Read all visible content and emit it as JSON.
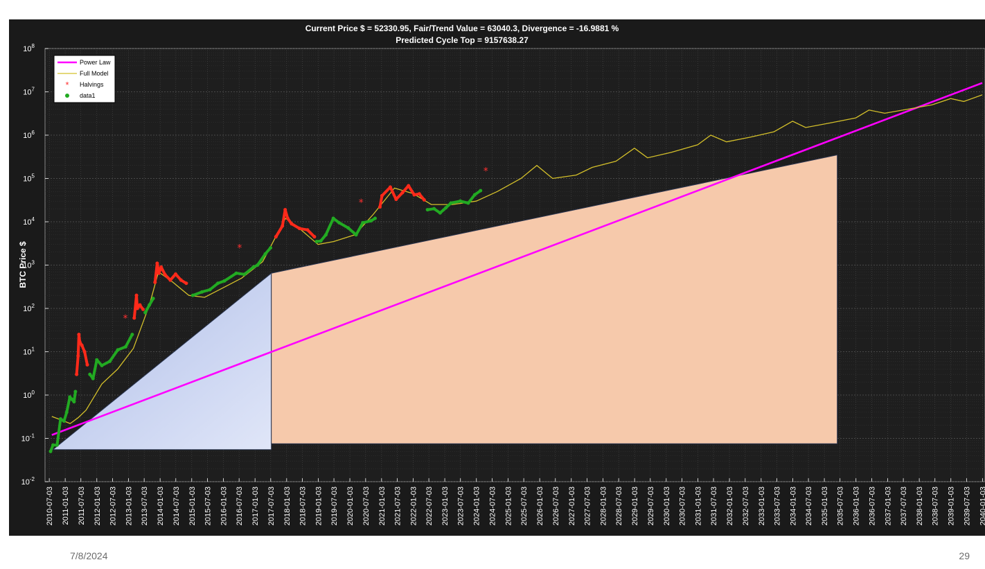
{
  "slide": {
    "date": "7/8/2024",
    "page_number": "29"
  },
  "colors": {
    "background": "#1a1a1a",
    "power_law": "#ff00ff",
    "full_model": "#d4c02a",
    "halvings": "#ff3030",
    "data_green": "#22aa22",
    "data_red": "#ff2a1a",
    "blue_triangle": "#c4d0f0",
    "orange_trapezoid": "#f6c9ab"
  },
  "chart_data": {
    "type": "scatter",
    "title": "Current Price $ = 52330.95, Fair/Trend Value = 63040.3, Divergence = -16.9881 %",
    "subtitle": "Predicted Cycle Top = 9157638.27",
    "ylabel": "BTC Price $",
    "yscale": "log",
    "ylim_exp": [
      -2,
      8
    ],
    "y_tick_labels": [
      {
        "base": "10",
        "exp": "-2"
      },
      {
        "base": "10",
        "exp": "-1"
      },
      {
        "base": "10",
        "exp": "0"
      },
      {
        "base": "10",
        "exp": "1"
      },
      {
        "base": "10",
        "exp": "2"
      },
      {
        "base": "10",
        "exp": "3"
      },
      {
        "base": "10",
        "exp": "4"
      },
      {
        "base": "10",
        "exp": "5"
      },
      {
        "base": "10",
        "exp": "6"
      },
      {
        "base": "10",
        "exp": "7"
      },
      {
        "base": "10",
        "exp": "8"
      }
    ],
    "xlim": [
      "2010-05-15",
      "2040-02-01"
    ],
    "x_ticks": [
      "2010-07-03",
      "2011-01-03",
      "2011-07-03",
      "2012-01-03",
      "2012-07-03",
      "2013-01-03",
      "2013-07-03",
      "2014-01-03",
      "2014-07-03",
      "2015-01-03",
      "2015-07-03",
      "2016-01-03",
      "2016-07-03",
      "2017-01-03",
      "2017-07-03",
      "2018-01-03",
      "2018-07-03",
      "2019-01-03",
      "2019-07-03",
      "2020-01-03",
      "2020-07-03",
      "2021-01-03",
      "2021-07-03",
      "2022-01-03",
      "2022-07-03",
      "2023-01-03",
      "2023-07-03",
      "2024-01-03",
      "2024-07-03",
      "2025-01-03",
      "2025-07-03",
      "2026-01-03",
      "2026-07-03",
      "2027-01-03",
      "2027-07-03",
      "2028-01-03",
      "2028-07-03",
      "2029-01-03",
      "2029-07-03",
      "2030-01-03",
      "2030-07-03",
      "2031-01-03",
      "2031-07-03",
      "2032-01-03",
      "2032-07-03",
      "2033-01-03",
      "2033-07-03",
      "2034-01-03",
      "2034-07-03",
      "2035-01-03",
      "2035-07-03",
      "2036-01-03",
      "2036-07-03",
      "2037-01-03",
      "2037-07-03",
      "2038-01-03",
      "2038-07-03",
      "2039-01-03",
      "2039-07-03",
      "2040-01-03"
    ],
    "grid": true,
    "legend_position": "top-left",
    "legend": [
      {
        "label": "Power Law",
        "marker": "line",
        "color": "#ff00ff"
      },
      {
        "label": "Full Model",
        "marker": "thin-line",
        "color": "#d4c02a"
      },
      {
        "label": "Halvings",
        "marker": "star",
        "color": "#ff3030"
      },
      {
        "label": "data1",
        "marker": "dot",
        "color": "#22aa22"
      }
    ],
    "series": [
      {
        "kind": "power_law",
        "points": [
          [
            "2010-08-01",
            0.12
          ],
          [
            "2039-12-31",
            16000000.0
          ]
        ]
      },
      {
        "kind": "full_model",
        "points": [
          [
            "2010-08-01",
            0.32
          ],
          [
            "2010-12-01",
            0.26
          ],
          [
            "2011-03-01",
            0.22
          ],
          [
            "2011-06-01",
            0.3
          ],
          [
            "2011-09-01",
            0.45
          ],
          [
            "2012-03-01",
            1.8
          ],
          [
            "2012-09-01",
            4.0
          ],
          [
            "2013-03-01",
            12
          ],
          [
            "2013-09-01",
            120
          ],
          [
            "2013-12-15",
            700
          ],
          [
            "2014-06-01",
            400
          ],
          [
            "2014-12-01",
            200
          ],
          [
            "2015-06-01",
            180
          ],
          [
            "2016-01-01",
            300
          ],
          [
            "2016-08-01",
            500
          ],
          [
            "2017-04-01",
            1200
          ],
          [
            "2017-12-20",
            12000
          ],
          [
            "2018-06-01",
            7000
          ],
          [
            "2019-01-01",
            3000
          ],
          [
            "2019-07-01",
            3500
          ],
          [
            "2020-03-01",
            5000
          ],
          [
            "2020-10-01",
            15000
          ],
          [
            "2021-06-01",
            60000
          ],
          [
            "2022-01-01",
            45000
          ],
          [
            "2022-08-01",
            25000
          ],
          [
            "2023-04-01",
            25000
          ],
          [
            "2024-01-01",
            30000
          ],
          [
            "2024-09-01",
            50000
          ],
          [
            "2025-06-01",
            100000
          ],
          [
            "2025-12-01",
            200000
          ],
          [
            "2026-06-01",
            100000
          ],
          [
            "2027-03-01",
            120000
          ],
          [
            "2027-09-01",
            180000
          ],
          [
            "2028-06-01",
            250000
          ],
          [
            "2029-01-01",
            500000
          ],
          [
            "2029-06-01",
            300000
          ],
          [
            "2030-03-01",
            400000
          ],
          [
            "2031-01-01",
            600000
          ],
          [
            "2031-06-01",
            1000000
          ],
          [
            "2031-12-01",
            700000
          ],
          [
            "2032-09-01",
            900000
          ],
          [
            "2033-06-01",
            1200000
          ],
          [
            "2034-01-01",
            2100000
          ],
          [
            "2034-06-01",
            1500000
          ],
          [
            "2035-03-01",
            1900000
          ],
          [
            "2036-01-01",
            2500000
          ],
          [
            "2036-06-01",
            3800000
          ],
          [
            "2036-12-01",
            3200000
          ],
          [
            "2037-09-01",
            4000000
          ],
          [
            "2038-06-01",
            5000000
          ],
          [
            "2039-01-01",
            7000000
          ],
          [
            "2039-06-01",
            6000000
          ],
          [
            "2039-12-31",
            8500000
          ]
        ]
      },
      {
        "kind": "price_green",
        "points": [
          [
            "2010-07-18",
            0.05
          ],
          [
            "2010-08-15",
            0.07
          ],
          [
            "2010-10-01",
            0.07
          ],
          [
            "2010-11-10",
            0.28
          ],
          [
            "2010-12-20",
            0.25
          ],
          [
            "2011-01-20",
            0.4
          ],
          [
            "2011-02-25",
            0.9
          ],
          [
            "2011-03-20",
            0.8
          ],
          [
            "2011-04-15",
            0.7
          ],
          [
            "2011-05-01",
            1.2
          ]
        ]
      },
      {
        "kind": "price_red",
        "points": [
          [
            "2011-05-15",
            3.0
          ],
          [
            "2011-06-01",
            8.0
          ],
          [
            "2011-06-10",
            25
          ],
          [
            "2011-06-20",
            17
          ],
          [
            "2011-07-15",
            14
          ],
          [
            "2011-08-15",
            10
          ],
          [
            "2011-09-15",
            5
          ]
        ]
      },
      {
        "kind": "price_green",
        "points": [
          [
            "2011-10-15",
            3
          ],
          [
            "2011-11-20",
            2.4
          ],
          [
            "2012-01-03",
            6.5
          ],
          [
            "2012-03-01",
            4.8
          ],
          [
            "2012-06-01",
            6
          ],
          [
            "2012-09-01",
            11
          ],
          [
            "2012-12-01",
            13
          ],
          [
            "2013-02-15",
            25
          ]
        ]
      },
      {
        "kind": "price_red",
        "points": [
          [
            "2013-03-10",
            60
          ],
          [
            "2013-04-05",
            200
          ],
          [
            "2013-04-15",
            100
          ],
          [
            "2013-05-15",
            120
          ],
          [
            "2013-06-20",
            95
          ]
        ]
      },
      {
        "kind": "price_green",
        "points": [
          [
            "2013-07-15",
            80
          ],
          [
            "2013-09-01",
            120
          ],
          [
            "2013-10-15",
            170
          ]
        ]
      },
      {
        "kind": "price_red",
        "points": [
          [
            "2013-11-05",
            400
          ],
          [
            "2013-11-30",
            1100
          ],
          [
            "2013-12-20",
            650
          ],
          [
            "2014-01-15",
            900
          ],
          [
            "2014-03-01",
            600
          ],
          [
            "2014-05-01",
            450
          ],
          [
            "2014-07-01",
            620
          ],
          [
            "2014-09-01",
            450
          ],
          [
            "2014-11-01",
            380
          ]
        ]
      },
      {
        "kind": "price_green",
        "points": [
          [
            "2015-01-15",
            200
          ],
          [
            "2015-05-01",
            240
          ],
          [
            "2015-08-01",
            270
          ],
          [
            "2015-11-01",
            380
          ],
          [
            "2016-01-15",
            430
          ],
          [
            "2016-06-01",
            650
          ],
          [
            "2016-09-01",
            610
          ],
          [
            "2016-12-15",
            900
          ],
          [
            "2017-02-01",
            1000
          ],
          [
            "2017-05-01",
            1800
          ],
          [
            "2017-07-01",
            2500
          ]
        ]
      },
      {
        "kind": "price_red",
        "points": [
          [
            "2017-09-01",
            4500
          ],
          [
            "2017-11-15",
            8000
          ],
          [
            "2017-12-17",
            19000
          ],
          [
            "2018-01-15",
            12000
          ],
          [
            "2018-03-01",
            9000
          ],
          [
            "2018-06-01",
            7000
          ],
          [
            "2018-09-01",
            6500
          ],
          [
            "2018-11-20",
            4500
          ]
        ]
      },
      {
        "kind": "price_green",
        "points": [
          [
            "2018-12-15",
            3500
          ],
          [
            "2019-02-01",
            3600
          ],
          [
            "2019-04-01",
            5000
          ],
          [
            "2019-06-26",
            12000
          ],
          [
            "2019-09-01",
            9500
          ],
          [
            "2019-12-15",
            7200
          ],
          [
            "2020-03-15",
            5000
          ],
          [
            "2020-06-01",
            9500
          ],
          [
            "2020-09-01",
            10500
          ],
          [
            "2020-10-20",
            12000
          ]
        ]
      },
      {
        "kind": "price_red",
        "points": [
          [
            "2020-12-15",
            22000
          ],
          [
            "2021-01-08",
            40000
          ],
          [
            "2021-04-14",
            63000
          ],
          [
            "2021-06-20",
            33000
          ],
          [
            "2021-09-01",
            47000
          ],
          [
            "2021-11-10",
            68000
          ],
          [
            "2022-01-15",
            42000
          ],
          [
            "2022-03-15",
            44000
          ],
          [
            "2022-05-10",
            32000
          ]
        ]
      },
      {
        "kind": "price_green",
        "points": [
          [
            "2022-06-18",
            19000
          ],
          [
            "2022-09-01",
            20000
          ],
          [
            "2022-11-10",
            16000
          ],
          [
            "2023-01-15",
            21000
          ],
          [
            "2023-03-15",
            27000
          ],
          [
            "2023-07-01",
            30000
          ],
          [
            "2023-10-01",
            27000
          ],
          [
            "2023-12-15",
            42000
          ],
          [
            "2024-02-20",
            52330
          ]
        ]
      },
      {
        "kind": "halvings",
        "points": [
          [
            "2012-11-28",
            60
          ],
          [
            "2016-07-09",
            2500
          ],
          [
            "2020-05-11",
            28000
          ],
          [
            "2024-04-20",
            150000
          ]
        ]
      }
    ],
    "annotations": [
      {
        "shape": "triangle",
        "points": [
          [
            "2010-08-15",
            0.055
          ],
          [
            "2017-07-10",
            0.055
          ],
          [
            "2017-07-10",
            650
          ]
        ],
        "fill": "#c4d0f0"
      },
      {
        "shape": "trapezoid",
        "points": [
          [
            "2017-07-10",
            650
          ],
          [
            "2035-06-01",
            350000
          ],
          [
            "2035-06-01",
            0.075
          ],
          [
            "2017-07-10",
            0.075
          ]
        ],
        "fill": "#f6c9ab"
      }
    ]
  }
}
